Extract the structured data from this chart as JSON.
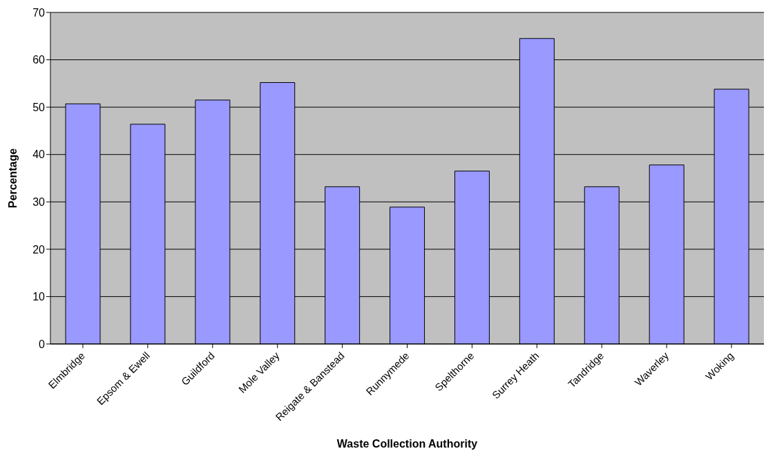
{
  "chart_data": {
    "type": "bar",
    "xlabel": "Waste Collection Authority",
    "ylabel": "Percentage",
    "categories": [
      "Elmbridge",
      "Epsom & Ewell",
      "Guildford",
      "Mole Valley",
      "Reigate & Banstead",
      "Runnymede",
      "Spelthorne",
      "Surrey Heath",
      "Tandridge",
      "Waverley",
      "Woking"
    ],
    "values": [
      50.7,
      46.4,
      51.5,
      55.2,
      33.2,
      28.9,
      36.5,
      64.5,
      33.2,
      37.8,
      53.8
    ],
    "color": "#9999ff",
    "ylim": [
      0,
      70
    ],
    "yticks": [
      0,
      10,
      20,
      30,
      40,
      50,
      60,
      70
    ],
    "grid": "y"
  }
}
